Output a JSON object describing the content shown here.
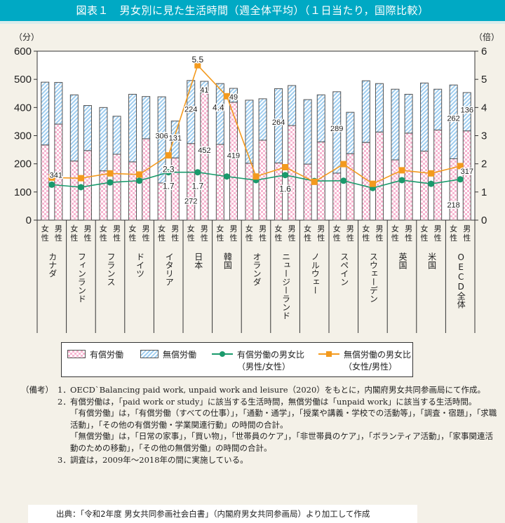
{
  "title": "図表１　男女別に見た生活時間（週全体平均）（１日当たり，国際比較）",
  "chart_data": {
    "type": "bar",
    "subtype": "stacked bar with dual-axis lines",
    "left_axis": {
      "unit_label": "（分）",
      "ylim": [
        0,
        600
      ],
      "ticks": [
        0,
        100,
        200,
        300,
        400,
        500,
        600
      ]
    },
    "right_axis": {
      "unit_label": "（倍）",
      "ylim": [
        0,
        6
      ],
      "ticks": [
        0,
        1,
        2,
        3,
        4,
        5,
        6
      ]
    },
    "sex_labels": [
      "女\n性",
      "男\n性"
    ],
    "categories": [
      "カナダ",
      "フィンランド",
      "フランス",
      "ドイツ",
      "イタリア",
      "日本",
      "韓国",
      "オランダ",
      "ニュージーランド",
      "ノルウェー",
      "スペイン",
      "スウェーデン",
      "英国",
      "米国",
      "OECD全体"
    ],
    "bar_series": [
      {
        "name": "有償労働",
        "color": "#f7b6d1",
        "female": [
          267,
          210,
          175,
          207,
          132,
          272,
          269,
          202,
          203,
          199,
          167,
          276,
          214,
          245,
          218
        ],
        "male": [
          341,
          247,
          234,
          289,
          221,
          452,
          419,
          284,
          336,
          278,
          236,
          313,
          309,
          320,
          317
        ]
      },
      {
        "name": "無償労働",
        "color": "#9fcdef",
        "female": [
          223,
          235,
          225,
          240,
          306,
          224,
          216,
          224,
          264,
          229,
          289,
          219,
          251,
          242,
          262
        ],
        "male": [
          148,
          160,
          135,
          150,
          131,
          41,
          49,
          147,
          142,
          167,
          147,
          172,
          138,
          145,
          136
        ]
      }
    ],
    "line_series": [
      {
        "name": "有償労働の男女比\n（男性/女性）",
        "color": "#1a9a6c",
        "marker": "circle",
        "values": [
          1.26,
          1.17,
          1.34,
          1.4,
          1.7,
          1.7,
          1.55,
          1.42,
          1.6,
          1.39,
          1.4,
          1.14,
          1.42,
          1.29,
          1.45
        ]
      },
      {
        "name": "無償労働の男女比\n（女性/男性）",
        "color": "#f39a1e",
        "marker": "square",
        "values": [
          1.51,
          1.49,
          1.66,
          1.62,
          2.3,
          5.5,
          4.4,
          1.55,
          1.88,
          1.36,
          1.99,
          1.29,
          1.77,
          1.66,
          1.92
        ]
      }
    ],
    "data_labels": [
      {
        "text": "341",
        "category": 0,
        "sex": "male",
        "series": "paid"
      },
      {
        "text": "306",
        "category": 4,
        "sex": "female",
        "series": "unpaid"
      },
      {
        "text": "131",
        "category": 4,
        "sex": "male",
        "series": "unpaid"
      },
      {
        "text": "2.3",
        "category": 4,
        "series": "unpaid_ratio"
      },
      {
        "text": "1.7",
        "category": 4,
        "series": "paid_ratio"
      },
      {
        "text": "5.5",
        "category": 5,
        "series": "unpaid_ratio"
      },
      {
        "text": "224",
        "category": 5,
        "sex": "female",
        "series": "unpaid"
      },
      {
        "text": "272",
        "category": 5,
        "sex": "female",
        "series": "paid"
      },
      {
        "text": "41",
        "category": 5,
        "sex": "male",
        "series": "unpaid"
      },
      {
        "text": "452",
        "category": 5,
        "sex": "male",
        "series": "paid"
      },
      {
        "text": "1.7",
        "category": 5,
        "series": "paid_ratio"
      },
      {
        "text": "4.4",
        "category": 6,
        "series": "unpaid_ratio"
      },
      {
        "text": "49",
        "category": 6,
        "sex": "male",
        "series": "unpaid"
      },
      {
        "text": "419",
        "category": 6,
        "sex": "male",
        "series": "paid"
      },
      {
        "text": "264",
        "category": 8,
        "sex": "female",
        "series": "unpaid"
      },
      {
        "text": "1.6",
        "category": 8,
        "series": "paid_ratio"
      },
      {
        "text": "289",
        "category": 10,
        "sex": "female",
        "series": "unpaid"
      },
      {
        "text": "262",
        "category": 14,
        "sex": "female",
        "series": "unpaid"
      },
      {
        "text": "218",
        "category": 14,
        "sex": "female",
        "series": "paid"
      },
      {
        "text": "136",
        "category": 14,
        "sex": "male",
        "series": "unpaid"
      },
      {
        "text": "317",
        "category": 14,
        "sex": "male",
        "series": "paid"
      }
    ],
    "legend": "bottom",
    "grid": false
  },
  "legend": {
    "paid": "有償労働",
    "unpaid": "無償労働",
    "paid_ratio_line1": "有償労働の男女比",
    "paid_ratio_line2": "（男性/女性）",
    "unpaid_ratio_line1": "無償労働の男女比",
    "unpaid_ratio_line2": "（女性/男性）"
  },
  "notes": {
    "head": "（備考）",
    "items": [
      {
        "num": "1．",
        "text": "OECD`Balancing paid work, unpaid work and leisure（2020）をもとに，内閣府男女共同参画局にて作成。"
      },
      {
        "num": "2．",
        "text": "有償労働は，「paid work or study」に該当する生活時間，無償労働は「unpaid work」に該当する生活時間。"
      },
      {
        "num": "",
        "text": "「有償労働」は，「有償労働（すべての仕事）」，「通勤・通学」，「授業や講義・学校での活動等」，「調査・宿題」，「求職活動」，「その他の有償労働・学業関連行動」の時間の合計。"
      },
      {
        "num": "",
        "text": "「無償労働」は，「日常の家事」，「買い物」，「世帯員のケア」，「非世帯員のケア」，「ボランティア活動」，「家事関連活動のための移動」，「その他の無償労働」の時間の合計。"
      },
      {
        "num": "3．",
        "text": "調査は，2009年～2018年の間に実施している。"
      }
    ]
  },
  "source": "出典：「令和2年度 男女共同参画社会白書」（内閣府男女共同参画局）より加工して作成"
}
